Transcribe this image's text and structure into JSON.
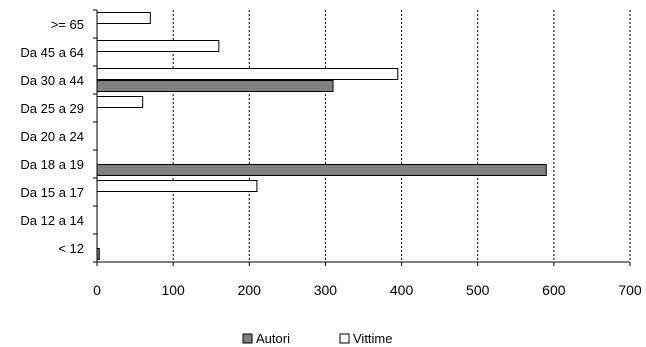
{
  "chart_data": {
    "type": "bar",
    "orientation": "horizontal",
    "categories": [
      ">= 65",
      "Da 45 a 64",
      "Da 30 a 44",
      "Da 25 a 29",
      "Da 20 a 24",
      "Da 18 a 19",
      "Da 15 a 17",
      "Da 12 a 14",
      "< 12"
    ],
    "series": [
      {
        "name": "Vittime",
        "color": "#ffffff",
        "values": [
          70,
          160,
          395,
          60,
          0,
          0,
          210,
          0,
          0
        ]
      },
      {
        "name": "Autori",
        "color": "#808080",
        "values": [
          0,
          0,
          310,
          0,
          0,
          590,
          0,
          0,
          3
        ]
      }
    ],
    "xlim": [
      0,
      700
    ],
    "xticks": [
      0,
      100,
      200,
      300,
      400,
      500,
      600,
      700
    ],
    "grid": "vertical dashed",
    "legend": {
      "position": "bottom",
      "order": [
        "Autori",
        "Vittime"
      ]
    },
    "title": "",
    "xlabel": "",
    "ylabel": ""
  }
}
